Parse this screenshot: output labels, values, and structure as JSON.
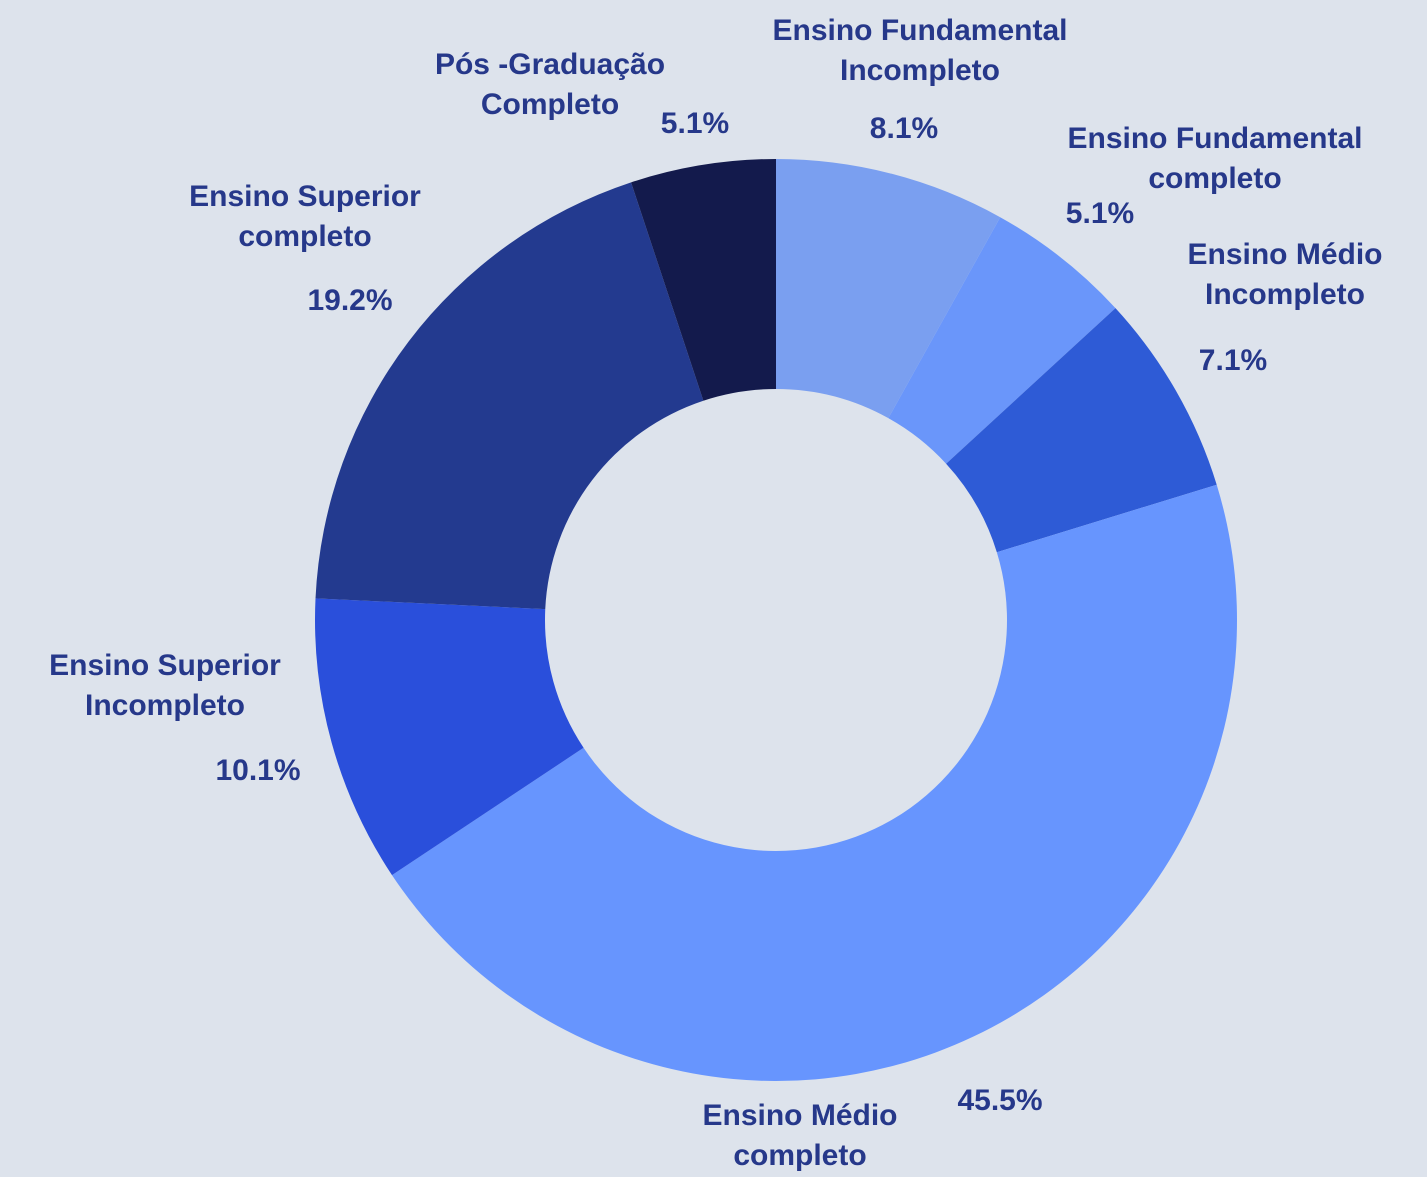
{
  "chart_data": {
    "type": "donut",
    "categories": [
      "Ensino Fundamental Incompleto",
      "Ensino Fundamental completo",
      "Ensino Médio Incompleto",
      "Ensino Médio completo",
      "Ensino Superior Incompleto",
      "Ensino Superior completo",
      "Pós -Graduação Completo"
    ],
    "values": [
      8.1,
      5.1,
      7.1,
      45.5,
      10.1,
      19.2,
      5.1
    ],
    "value_labels": [
      "8.1%",
      "5.1%",
      "7.1%",
      "45.5%",
      "10.1%",
      "19.2%",
      "5.1%"
    ],
    "colors": [
      "#7a9ff0",
      "#6a96fa",
      "#2e5bd6",
      "#6795fe",
      "#2a4fdb",
      "#233a8f",
      "#131a4c"
    ]
  }
}
